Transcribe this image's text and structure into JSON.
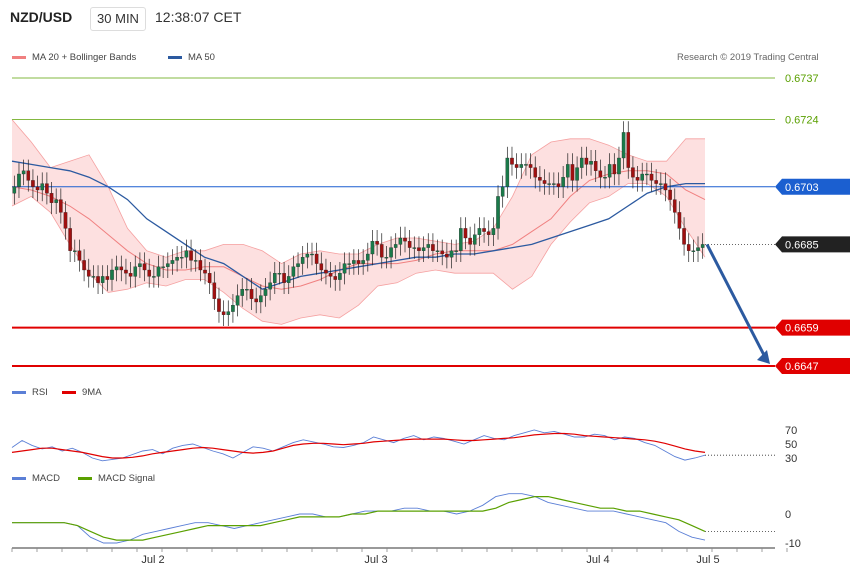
{
  "header": {
    "symbol": "NZD/USD",
    "timeframe": "30 MIN",
    "clock": "12:38:07 CET"
  },
  "legend_main": {
    "ma20_label": "MA 20 + Bollinger Bands",
    "ma50_label": "MA 50",
    "copyright": "Research © 2019 Trading Central",
    "ma20_color": "#f08080",
    "ma50_color": "#2c5aa0"
  },
  "legend_rsi": {
    "rsi_label": "RSI",
    "ma_label": "9MA",
    "rsi_color": "#5b7fd6",
    "ma_color": "#e00000"
  },
  "legend_macd": {
    "macd_label": "MACD",
    "signal_label": "MACD Signal",
    "macd_color": "#5b7fd6",
    "signal_color": "#5aa000"
  },
  "x_labels": [
    "Jul 2",
    "Jul 3",
    "Jul 4",
    "Jul 5"
  ],
  "chart_data": [
    {
      "type": "candlestick",
      "title": "NZD/USD",
      "ylim": [
        0.6638,
        0.6745
      ],
      "levels": [
        {
          "value": 0.6737,
          "kind": "resistance",
          "color": "#5aa000"
        },
        {
          "value": 0.6724,
          "kind": "resistance",
          "color": "#5aa000"
        },
        {
          "value": 0.6703,
          "kind": "pivot",
          "color": "#1b5fd0"
        },
        {
          "value": 0.6685,
          "kind": "last",
          "color": "#222222"
        },
        {
          "value": 0.6659,
          "kind": "support",
          "color": "#e00000"
        },
        {
          "value": 0.6647,
          "kind": "support",
          "color": "#e00000"
        }
      ],
      "closes": [
        0.6703,
        0.6707,
        0.6708,
        0.6705,
        0.6703,
        0.6702,
        0.6704,
        0.6701,
        0.6698,
        0.6699,
        0.6695,
        0.669,
        0.6683,
        0.6683,
        0.668,
        0.6677,
        0.6675,
        0.6675,
        0.6673,
        0.6675,
        0.6674,
        0.6677,
        0.6678,
        0.6677,
        0.6676,
        0.6675,
        0.6678,
        0.6679,
        0.6677,
        0.6675,
        0.6675,
        0.6678,
        0.6678,
        0.6679,
        0.668,
        0.6681,
        0.6681,
        0.6683,
        0.668,
        0.668,
        0.6677,
        0.6676,
        0.6673,
        0.6668,
        0.6664,
        0.6663,
        0.6664,
        0.6666,
        0.6669,
        0.6671,
        0.6671,
        0.6668,
        0.6667,
        0.6669,
        0.6671,
        0.6673,
        0.6676,
        0.6676,
        0.6673,
        0.6675,
        0.6678,
        0.6679,
        0.6681,
        0.6682,
        0.6682,
        0.6679,
        0.6677,
        0.6676,
        0.6675,
        0.6674,
        0.6676,
        0.6679,
        0.6679,
        0.668,
        0.6679,
        0.668,
        0.6682,
        0.6686,
        0.6685,
        0.6681,
        0.6681,
        0.6684,
        0.6685,
        0.6687,
        0.6686,
        0.6684,
        0.6684,
        0.6683,
        0.6684,
        0.6685,
        0.6683,
        0.6683,
        0.6682,
        0.6681,
        0.6683,
        0.6683,
        0.669,
        0.6687,
        0.6685,
        0.6688,
        0.669,
        0.6689,
        0.6688,
        0.669,
        0.67,
        0.6703,
        0.6712,
        0.671,
        0.6709,
        0.671,
        0.671,
        0.6709,
        0.6706,
        0.6705,
        0.6704,
        0.6704,
        0.6704,
        0.6703,
        0.6706,
        0.671,
        0.6705,
        0.6709,
        0.6712,
        0.671,
        0.6711,
        0.6708,
        0.6706,
        0.6706,
        0.671,
        0.6707,
        0.6712,
        0.672,
        0.6709,
        0.6706,
        0.6705,
        0.6707,
        0.6707,
        0.6705,
        0.6704,
        0.6704,
        0.6702,
        0.6699,
        0.6695,
        0.669,
        0.6685,
        0.6683,
        0.6683,
        0.6684,
        0.6685
      ],
      "ma50": [
        0.6711,
        0.671,
        0.6709,
        0.6708,
        0.6706,
        0.6703,
        0.6699,
        0.6693,
        0.6689,
        0.6685,
        0.6681,
        0.6679,
        0.6675,
        0.6671,
        0.6673,
        0.6675,
        0.6676,
        0.6677,
        0.6678,
        0.6679,
        0.668,
        0.6681,
        0.6681,
        0.6682,
        0.6682,
        0.6683,
        0.6684,
        0.6685,
        0.6687,
        0.6689,
        0.6691,
        0.6693,
        0.6697,
        0.6701,
        0.6703,
        0.6704,
        0.6704
      ],
      "ma20": [
        0.6703,
        0.6702,
        0.67,
        0.6697,
        0.6693,
        0.6688,
        0.6683,
        0.6679,
        0.6677,
        0.6677,
        0.6678,
        0.6678,
        0.6675,
        0.6672,
        0.6671,
        0.6672,
        0.6674,
        0.6677,
        0.6679,
        0.6679,
        0.6679,
        0.668,
        0.6682,
        0.6683,
        0.6683,
        0.6683,
        0.6685,
        0.6689,
        0.6693,
        0.67,
        0.6705,
        0.6707,
        0.6708,
        0.6708,
        0.6707,
        0.6702,
        0.6699
      ],
      "bb_upper": [
        0.6724,
        0.6717,
        0.6709,
        0.6711,
        0.6713,
        0.6703,
        0.669,
        0.6683,
        0.6681,
        0.6683,
        0.6683,
        0.6685,
        0.6685,
        0.6683,
        0.6679,
        0.6682,
        0.6683,
        0.6682,
        0.6682,
        0.6685,
        0.6687,
        0.6687,
        0.6686,
        0.6685,
        0.6686,
        0.669,
        0.67,
        0.6713,
        0.6717,
        0.6718,
        0.6718,
        0.6716,
        0.6713,
        0.6711,
        0.6711,
        0.6718,
        0.6718
      ],
      "bb_lower": [
        0.6697,
        0.67,
        0.6695,
        0.6685,
        0.6676,
        0.667,
        0.6671,
        0.6673,
        0.6672,
        0.6674,
        0.6674,
        0.667,
        0.6665,
        0.6661,
        0.666,
        0.6662,
        0.6663,
        0.6662,
        0.6666,
        0.6672,
        0.6673,
        0.6676,
        0.6677,
        0.6676,
        0.6676,
        0.6676,
        0.6671,
        0.6675,
        0.6685,
        0.6692,
        0.6698,
        0.67,
        0.6704,
        0.6704,
        0.67,
        0.669,
        0.6681
      ],
      "projection": {
        "from": 0.6685,
        "to": 0.6647
      }
    },
    {
      "type": "line",
      "title": "RSI",
      "ylim": [
        20,
        80
      ],
      "ticks": [
        70,
        50,
        30
      ],
      "rsi": [
        45,
        55,
        48,
        43,
        46,
        40,
        44,
        38,
        30,
        26,
        28,
        30,
        35,
        40,
        42,
        36,
        44,
        48,
        50,
        45,
        40,
        36,
        30,
        38,
        46,
        44,
        40,
        46,
        52,
        56,
        53,
        50,
        46,
        45,
        48,
        52,
        60,
        56,
        52,
        58,
        62,
        56,
        60,
        58,
        54,
        50,
        56,
        62,
        58,
        56,
        62,
        66,
        70,
        66,
        68,
        64,
        60,
        60,
        64,
        62,
        56,
        60,
        58,
        52,
        48,
        40,
        32,
        27,
        30,
        34
      ],
      "ma9": [
        38,
        40,
        42,
        44,
        44,
        42,
        40,
        38,
        35,
        32,
        30,
        30,
        31,
        33,
        36,
        38,
        40,
        42,
        44,
        45,
        44,
        42,
        40,
        38,
        37,
        38,
        40,
        44,
        48,
        50,
        51,
        51,
        50,
        49,
        50,
        51,
        53,
        54,
        55,
        56,
        57,
        57,
        57,
        57,
        56,
        55,
        55,
        56,
        57,
        58,
        59,
        61,
        63,
        64,
        65,
        65,
        64,
        62,
        61,
        60,
        59,
        58,
        57,
        56,
        54,
        51,
        47,
        43,
        40,
        38
      ]
    },
    {
      "type": "line",
      "title": "MACD",
      "ylim": [
        -12,
        15
      ],
      "ticks": [
        0,
        -10
      ],
      "macd": [
        -3,
        -3,
        -3,
        -3,
        -3,
        -4,
        -8,
        -10,
        -10,
        -9,
        -7,
        -6,
        -5,
        -4,
        -3,
        -3,
        -4,
        -5,
        -4,
        -3,
        -2,
        -1,
        0,
        0,
        -1,
        -1,
        0,
        1,
        1,
        1,
        2,
        2,
        1,
        1,
        0,
        1,
        3,
        6,
        7,
        7,
        6,
        4,
        3,
        2,
        1,
        1,
        1,
        0,
        -1,
        -2,
        -3,
        -6,
        -8,
        -9
      ],
      "signal": [
        -3,
        -3,
        -3,
        -3,
        -3,
        -4,
        -6,
        -8,
        -9,
        -9,
        -9,
        -8,
        -7,
        -6,
        -5,
        -4,
        -4,
        -4,
        -4,
        -4,
        -3,
        -2,
        -1,
        -1,
        -1,
        -1,
        0,
        0,
        1,
        1,
        1,
        1,
        1,
        1,
        1,
        1,
        1,
        2,
        4,
        5,
        6,
        6,
        5,
        4,
        3,
        2,
        2,
        1,
        1,
        0,
        -1,
        -2,
        -4,
        -6
      ]
    }
  ]
}
